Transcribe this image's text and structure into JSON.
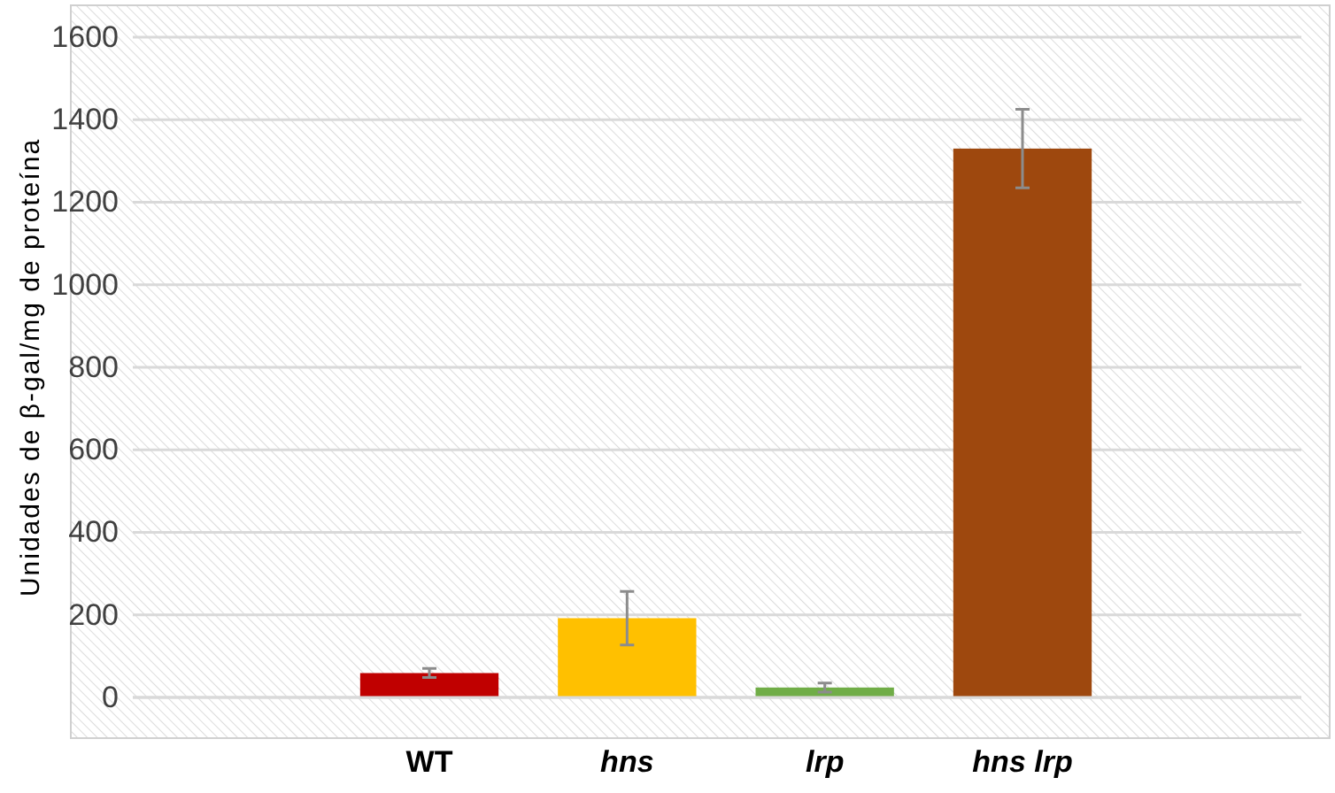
{
  "chart_data": {
    "type": "bar",
    "ylabel": "Unidades de β-gal/mg de proteína",
    "categories": [
      null,
      "WT",
      "hns",
      "lrp",
      "hns lrp",
      null
    ],
    "values": [
      null,
      59,
      192,
      24,
      1330,
      null
    ],
    "colors": [
      null,
      "#c00000",
      "#ffc000",
      "#70ad47",
      "#9e480e",
      null
    ],
    "errors": [
      null,
      11,
      65,
      11,
      95,
      null
    ],
    "ylim": [
      0,
      1600
    ],
    "yticks": [
      0,
      200,
      400,
      600,
      800,
      1000,
      1200,
      1400,
      1600
    ],
    "grid": "y"
  }
}
